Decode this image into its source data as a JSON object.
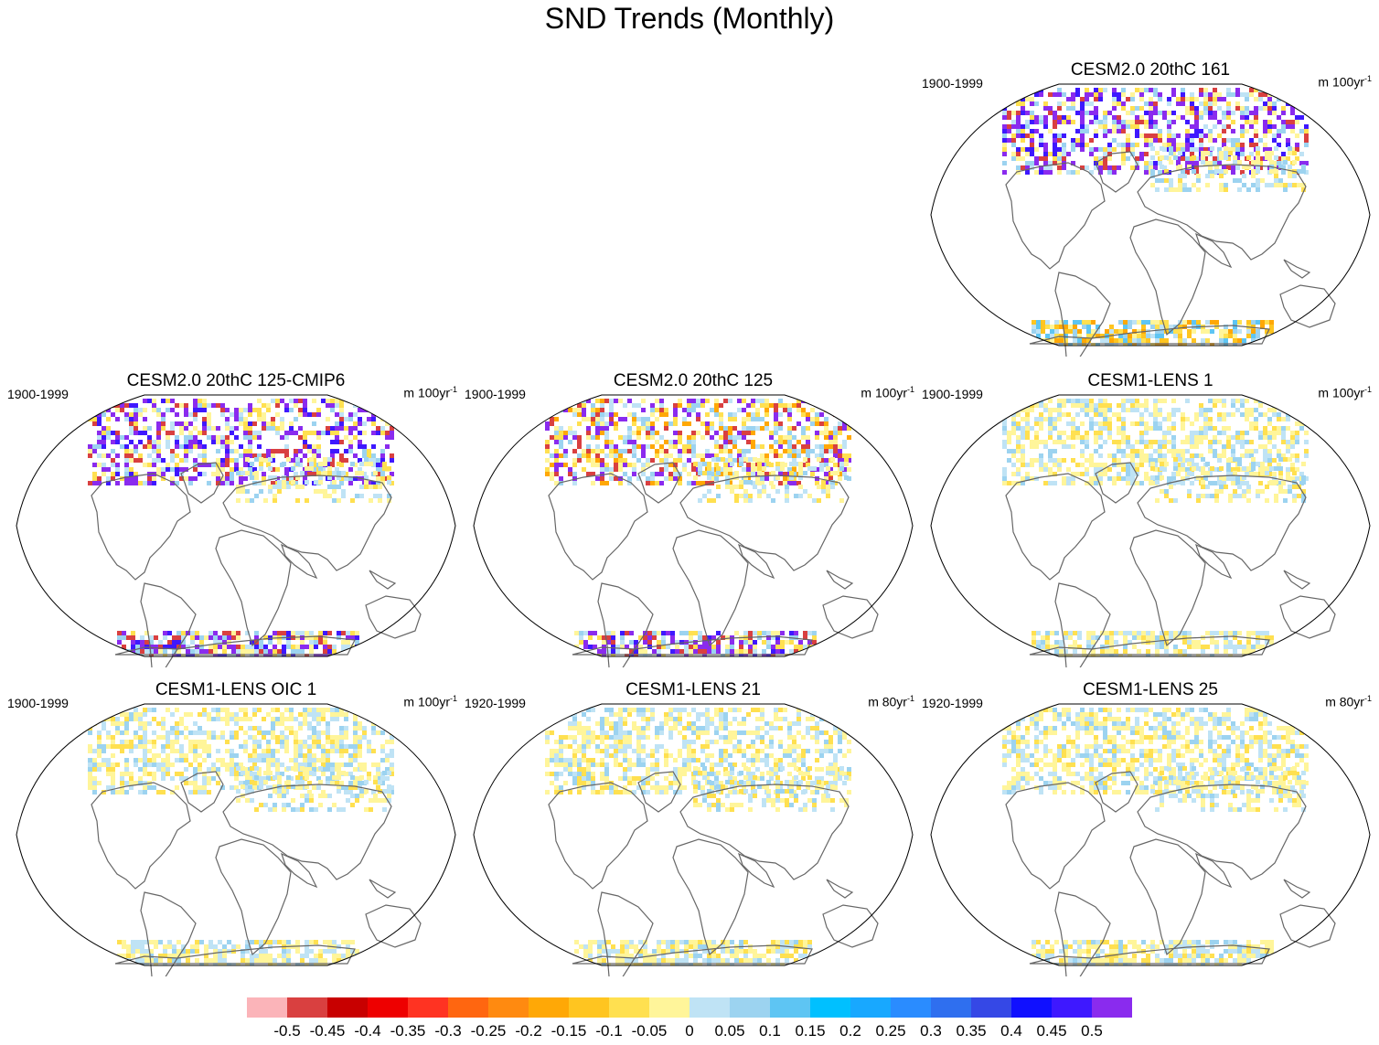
{
  "title": "SND Trends (Monthly)",
  "panels": [
    {
      "title": "CESM2.0 20thC 161",
      "period": "1900-1999",
      "units": "m 100yr",
      "units_exp": "-1",
      "na": "strong",
      "sa": "moderate"
    },
    {
      "title": "CESM2.0 20thC 125-CMIP6",
      "period": "1900-1999",
      "units": "m 100yr",
      "units_exp": "-1",
      "na": "strong",
      "sa": "strong"
    },
    {
      "title": "CESM2.0 20thC 125",
      "period": "1900-1999",
      "units": "m 100yr",
      "units_exp": "-1",
      "na": "mixed",
      "sa": "strong"
    },
    {
      "title": "CESM1-LENS 1",
      "period": "1900-1999",
      "units": "m 100yr",
      "units_exp": "-1",
      "na": "weak",
      "sa": "weak"
    },
    {
      "title": "CESM1-LENS OIC 1",
      "period": "1900-1999",
      "units": "m 100yr",
      "units_exp": "-1",
      "na": "weak",
      "sa": "weak"
    },
    {
      "title": "CESM1-LENS 21",
      "period": "1920-1999",
      "units": "m 80yr",
      "units_exp": "-1",
      "na": "weak",
      "sa": "weak"
    },
    {
      "title": "CESM1-LENS 25",
      "period": "1920-1999",
      "units": "m 80yr",
      "units_exp": "-1",
      "na": "weak",
      "sa": "weak"
    }
  ],
  "colorbar": {
    "colors": [
      "#fbb4b9",
      "#d94040",
      "#c80000",
      "#ee0000",
      "#ff3322",
      "#ff6610",
      "#ff8a10",
      "#ffa806",
      "#ffc520",
      "#ffe050",
      "#fff59a",
      "#bfe3f5",
      "#9cd3f0",
      "#5ec5f3",
      "#00c0ff",
      "#18a8ff",
      "#2a8cff",
      "#2f6fef",
      "#3548e6",
      "#1010ff",
      "#3e18ff",
      "#8a2bee"
    ],
    "labels": [
      "-0.5",
      "-0.45",
      "-0.4",
      "-0.35",
      "-0.3",
      "-0.25",
      "-0.2",
      "-0.15",
      "-0.1",
      "-0.05",
      "0",
      "0.05",
      "0.1",
      "0.15",
      "0.2",
      "0.25",
      "0.3",
      "0.35",
      "0.4",
      "0.45",
      "0.5"
    ]
  }
}
